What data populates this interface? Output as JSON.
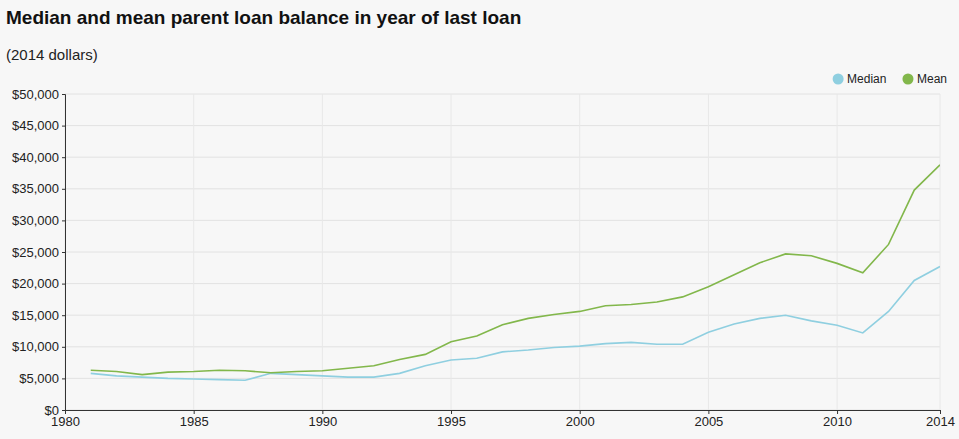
{
  "chart_data": {
    "type": "line",
    "title": "Median and mean parent loan balance in year of last loan",
    "subtitle": "(2014 dollars)",
    "x": [
      1981,
      1982,
      1983,
      1984,
      1985,
      1986,
      1987,
      1988,
      1989,
      1990,
      1991,
      1992,
      1993,
      1994,
      1995,
      1996,
      1997,
      1998,
      1999,
      2000,
      2001,
      2002,
      2003,
      2004,
      2005,
      2006,
      2007,
      2008,
      2009,
      2010,
      2011,
      2012,
      2013,
      2014
    ],
    "series": [
      {
        "name": "Median",
        "color": "#8fcfe0",
        "values": [
          5800,
          5400,
          5200,
          5000,
          4900,
          4800,
          4700,
          5800,
          5600,
          5400,
          5200,
          5200,
          5800,
          7000,
          7900,
          8200,
          9200,
          9500,
          9900,
          10100,
          10500,
          10700,
          10400,
          10400,
          12300,
          13600,
          14500,
          15000,
          14100,
          13400,
          12200,
          15600,
          20500,
          22700
        ]
      },
      {
        "name": "Mean",
        "color": "#82b74b",
        "values": [
          6300,
          6100,
          5600,
          6000,
          6100,
          6300,
          6200,
          5900,
          6100,
          6200,
          6600,
          7000,
          8000,
          8800,
          10800,
          11700,
          13500,
          14500,
          15100,
          15600,
          16500,
          16700,
          17100,
          17900,
          19500,
          21400,
          23300,
          24700,
          24400,
          23200,
          21700,
          26200,
          34800,
          38800
        ]
      }
    ],
    "xlim": [
      1980,
      2014
    ],
    "xticks": [
      1980,
      1985,
      1990,
      1995,
      2000,
      2005,
      2010,
      2014
    ],
    "ylim": [
      0,
      50000
    ],
    "yticks": [
      {
        "value": 0,
        "label": "$0"
      },
      {
        "value": 5000,
        "label": "$5,000"
      },
      {
        "value": 10000,
        "label": "$10,000"
      },
      {
        "value": 15000,
        "label": "$15,000"
      },
      {
        "value": 20000,
        "label": "$20,000"
      },
      {
        "value": 25000,
        "label": "$25,000"
      },
      {
        "value": 30000,
        "label": "$30,000"
      },
      {
        "value": 35000,
        "label": "$35,000"
      },
      {
        "value": 40000,
        "label": "$40,000"
      },
      {
        "value": 45000,
        "label": "$45,000"
      },
      {
        "value": 50000,
        "label": "$50,000"
      }
    ],
    "grid": true,
    "legend": "top-right"
  }
}
